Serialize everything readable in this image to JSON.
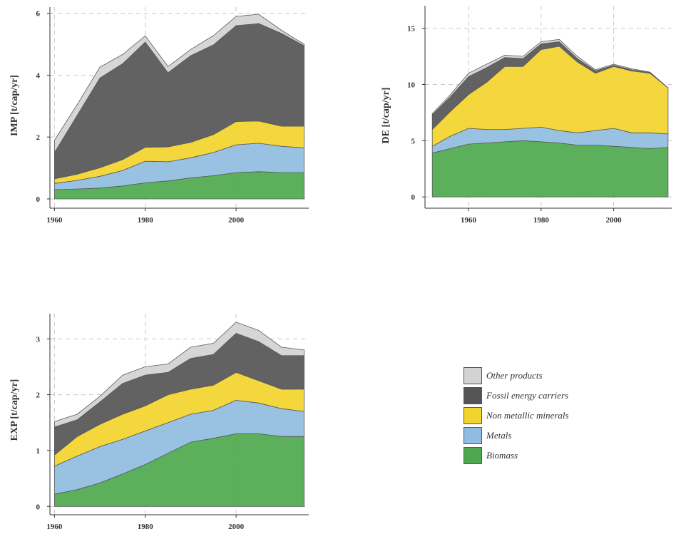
{
  "legend": [
    {
      "label": "Other products",
      "color": "#d3d3d3"
    },
    {
      "label": "Fossil energy carriers",
      "color": "#555555"
    },
    {
      "label": "Non metallic minerals",
      "color": "#f2d42c"
    },
    {
      "label": "Metals",
      "color": "#8fbce0"
    },
    {
      "label": "Biomass",
      "color": "#4ea94e"
    }
  ],
  "chart_data": [
    {
      "type": "area",
      "ylabel": "IMP [t/cap/yr]",
      "xlim": [
        1959,
        2016
      ],
      "ylim": [
        -0.3,
        6.2
      ],
      "xticks": [
        1960,
        1980,
        2000
      ],
      "yticks": [
        0,
        2,
        4,
        6
      ],
      "x": [
        1960,
        1965,
        1970,
        1975,
        1980,
        1985,
        1990,
        1995,
        2000,
        2005,
        2010,
        2015
      ],
      "stack_order": [
        "Biomass",
        "Metals",
        "Non metallic minerals",
        "Fossil energy carriers",
        "Other products"
      ],
      "series": [
        {
          "name": "Biomass",
          "values": [
            0.3,
            0.32,
            0.35,
            0.42,
            0.52,
            0.58,
            0.68,
            0.75,
            0.85,
            0.88,
            0.85,
            0.85
          ]
        },
        {
          "name": "Metals",
          "values": [
            0.2,
            0.28,
            0.38,
            0.5,
            0.7,
            0.62,
            0.65,
            0.75,
            0.9,
            0.92,
            0.85,
            0.8
          ]
        },
        {
          "name": "Non metallic minerals",
          "values": [
            0.15,
            0.2,
            0.28,
            0.35,
            0.45,
            0.48,
            0.5,
            0.58,
            0.75,
            0.72,
            0.65,
            0.7
          ]
        },
        {
          "name": "Fossil energy carriers",
          "values": [
            0.85,
            1.9,
            2.9,
            3.1,
            3.4,
            2.4,
            2.8,
            2.9,
            3.1,
            3.15,
            3.0,
            2.6
          ]
        },
        {
          "name": "Other products",
          "values": [
            0.4,
            0.35,
            0.35,
            0.3,
            0.2,
            0.2,
            0.2,
            0.3,
            0.3,
            0.3,
            0.1,
            0.05
          ]
        }
      ]
    },
    {
      "type": "area",
      "ylabel": "DE [t/cap/yr]",
      "xlim": [
        1948,
        2016
      ],
      "ylim": [
        -1,
        17
      ],
      "xticks": [
        1960,
        1980,
        2000
      ],
      "yticks": [
        0,
        5,
        10,
        15
      ],
      "x": [
        1950,
        1955,
        1960,
        1965,
        1970,
        1975,
        1980,
        1985,
        1990,
        1995,
        2000,
        2005,
        2010,
        2015
      ],
      "stack_order": [
        "Biomass",
        "Metals",
        "Non metallic minerals",
        "Fossil energy carriers",
        "Other products"
      ],
      "series": [
        {
          "name": "Biomass",
          "values": [
            3.9,
            4.3,
            4.7,
            4.8,
            4.9,
            5.0,
            4.9,
            4.8,
            4.6,
            4.6,
            4.5,
            4.4,
            4.3,
            4.4
          ]
        },
        {
          "name": "Metals",
          "values": [
            0.6,
            1.1,
            1.4,
            1.2,
            1.1,
            1.1,
            1.3,
            1.1,
            1.1,
            1.3,
            1.6,
            1.3,
            1.4,
            1.2
          ]
        },
        {
          "name": "Non metallic minerals",
          "values": [
            1.5,
            2.2,
            3.0,
            4.2,
            5.6,
            5.5,
            6.9,
            7.5,
            6.3,
            5.1,
            5.5,
            5.5,
            5.3,
            4.1
          ]
        },
        {
          "name": "Fossil energy carriers",
          "values": [
            1.3,
            1.3,
            1.6,
            1.3,
            0.8,
            0.7,
            0.5,
            0.4,
            0.3,
            0.2,
            0.1,
            0.1,
            0.05,
            0.0
          ]
        },
        {
          "name": "Other products",
          "values": [
            0.1,
            0.2,
            0.3,
            0.3,
            0.2,
            0.2,
            0.2,
            0.2,
            0.2,
            0.1,
            0.1,
            0.1,
            0.05,
            0.0
          ]
        }
      ]
    },
    {
      "type": "area",
      "ylabel": "EXP [t/cap/yr]",
      "xlim": [
        1959,
        2016
      ],
      "ylim": [
        -0.15,
        3.45
      ],
      "xticks": [
        1960,
        1980,
        2000
      ],
      "yticks": [
        0,
        1,
        2,
        3
      ],
      "x": [
        1960,
        1965,
        1970,
        1975,
        1980,
        1985,
        1990,
        1995,
        2000,
        2005,
        2010,
        2015
      ],
      "stack_order": [
        "Biomass",
        "Metals",
        "Non metallic minerals",
        "Fossil energy carriers",
        "Other products"
      ],
      "series": [
        {
          "name": "Biomass",
          "values": [
            0.22,
            0.3,
            0.42,
            0.58,
            0.75,
            0.95,
            1.15,
            1.22,
            1.3,
            1.3,
            1.25,
            1.25
          ]
        },
        {
          "name": "Metals",
          "values": [
            0.5,
            0.6,
            0.65,
            0.62,
            0.6,
            0.55,
            0.5,
            0.5,
            0.6,
            0.55,
            0.5,
            0.45
          ]
        },
        {
          "name": "Non metallic minerals",
          "values": [
            0.2,
            0.35,
            0.4,
            0.45,
            0.45,
            0.5,
            0.45,
            0.45,
            0.5,
            0.4,
            0.35,
            0.4
          ]
        },
        {
          "name": "Fossil energy carriers",
          "values": [
            0.5,
            0.3,
            0.4,
            0.55,
            0.55,
            0.4,
            0.55,
            0.55,
            0.7,
            0.7,
            0.6,
            0.6
          ]
        },
        {
          "name": "Other products",
          "values": [
            0.1,
            0.1,
            0.1,
            0.15,
            0.15,
            0.15,
            0.2,
            0.2,
            0.2,
            0.2,
            0.15,
            0.1
          ]
        }
      ]
    }
  ]
}
